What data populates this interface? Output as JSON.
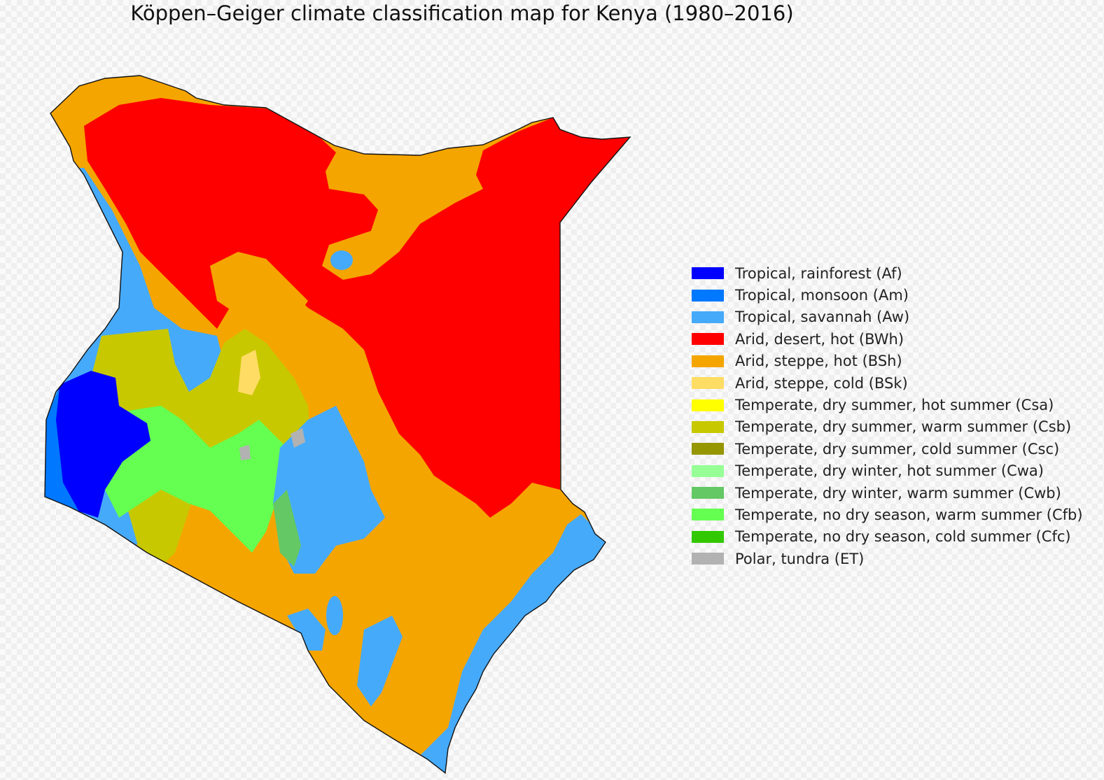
{
  "title": "Köppen–Geiger climate classification map for Kenya (1980–2016)",
  "legend": [
    {
      "code": "Af",
      "label": "Tropical, rainforest (Af)",
      "color": "#0000fe"
    },
    {
      "code": "Am",
      "label": "Tropical, monsoon (Am)",
      "color": "#0078ff"
    },
    {
      "code": "Aw",
      "label": "Tropical, savannah (Aw)",
      "color": "#46aafa"
    },
    {
      "code": "BWh",
      "label": "Arid, desert, hot (BWh)",
      "color": "#ff0000"
    },
    {
      "code": "BSh",
      "label": "Arid, steppe, hot (BSh)",
      "color": "#f5a500"
    },
    {
      "code": "BSk",
      "label": "Arid, steppe, cold (BSk)",
      "color": "#ffdc64"
    },
    {
      "code": "Csa",
      "label": "Temperate, dry summer, hot summer (Csa)",
      "color": "#ffff00"
    },
    {
      "code": "Csb",
      "label": "Temperate, dry summer, warm summer (Csb)",
      "color": "#c8c800"
    },
    {
      "code": "Csc",
      "label": "Temperate, dry summer, cold summer (Csc)",
      "color": "#969600"
    },
    {
      "code": "Cwa",
      "label": "Temperate, dry winter, hot summer (Cwa)",
      "color": "#96ff96"
    },
    {
      "code": "Cwb",
      "label": "Temperate, dry winter, warm summer (Cwb)",
      "color": "#64c864"
    },
    {
      "code": "Cfb",
      "label": "Temperate, no dry season, warm summer (Cfb)",
      "color": "#64ff50"
    },
    {
      "code": "Cfc",
      "label": "Temperate, no dry season, cold summer (Cfc)",
      "color": "#32c800"
    },
    {
      "code": "ET",
      "label": "Polar, tundra (ET)",
      "color": "#b2b2b2"
    }
  ]
}
